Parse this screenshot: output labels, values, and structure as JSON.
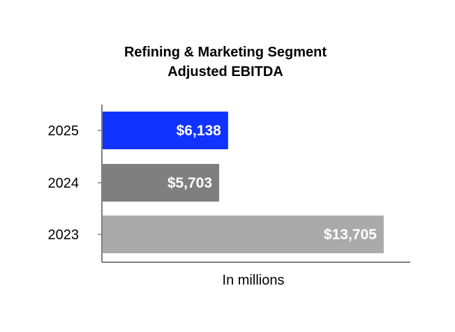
{
  "chart_data": {
    "type": "bar",
    "orientation": "horizontal",
    "title": [
      "Refining & Marketing Segment",
      "Adjusted EBITDA"
    ],
    "categories": [
      "2025",
      "2024",
      "2023"
    ],
    "values": [
      6138,
      5703,
      13705
    ],
    "data_labels": [
      "$6,138",
      "$5,703",
      "$13,705"
    ],
    "xlabel": "In millions",
    "ylabel": "",
    "xlim": [
      0,
      15000
    ],
    "grid": false,
    "legend": "none",
    "colors": [
      "#1133ff",
      "#7f7f7f",
      "#aaaaaa"
    ],
    "axis_color": "#808080"
  }
}
